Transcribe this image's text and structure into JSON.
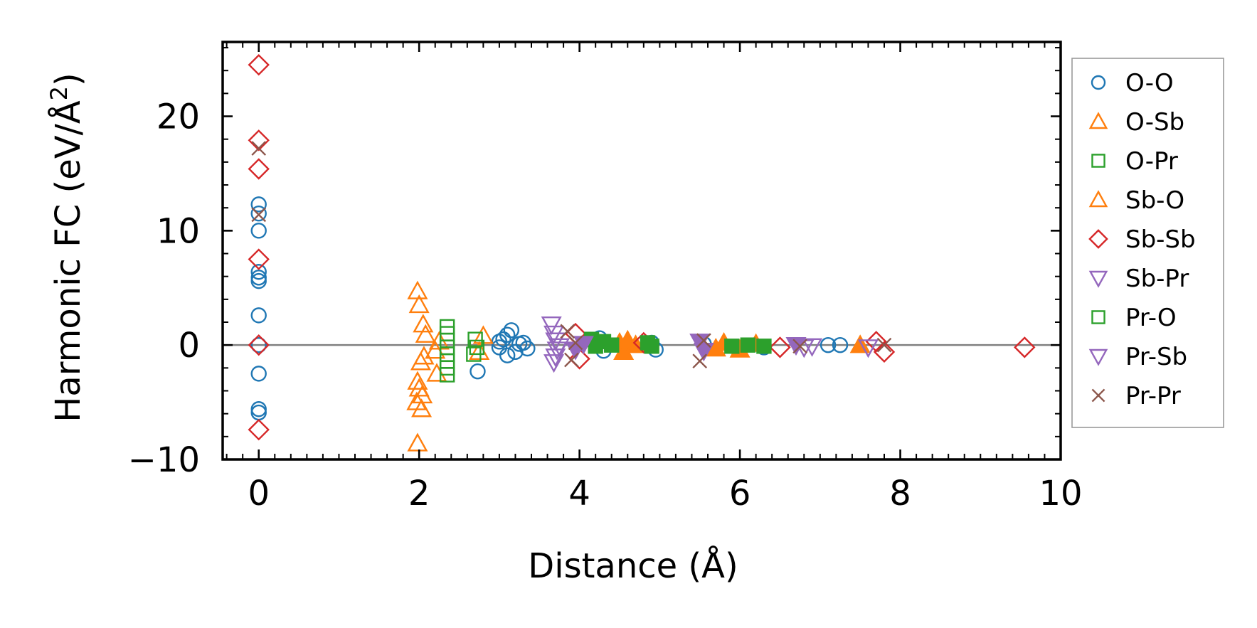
{
  "chart_data": {
    "type": "scatter",
    "xlabel": "Distance (Å)",
    "ylabel_main": "Harmonic FC (eV/Å",
    "ylabel_sup": "2",
    "ylabel_close": ")",
    "xlim": [
      -0.45,
      10
    ],
    "ylim": [
      -10,
      26.5
    ],
    "xticks": [
      0,
      2,
      4,
      6,
      8,
      10
    ],
    "xtick_labels": [
      "0",
      "2",
      "4",
      "6",
      "8",
      "10"
    ],
    "yticks": [
      -10,
      0,
      10,
      20
    ],
    "ytick_labels": [
      "−10",
      "0",
      "10",
      "20"
    ],
    "zero_line": 0,
    "legend_position": "outside-right",
    "series": [
      {
        "name": "O-O",
        "marker": "circle",
        "color": "#1f77b4",
        "fill": false,
        "points": [
          [
            0,
            12.3
          ],
          [
            0,
            11.5
          ],
          [
            0,
            10
          ],
          [
            0,
            6.4
          ],
          [
            0,
            5.9
          ],
          [
            0,
            5.6
          ],
          [
            0,
            2.6
          ],
          [
            0,
            0
          ],
          [
            0,
            -2.5
          ],
          [
            0,
            -5.6
          ],
          [
            0,
            -5.9
          ],
          [
            2.73,
            -2.3
          ],
          [
            3.0,
            -0.2
          ],
          [
            3.05,
            0.5
          ],
          [
            3.1,
            0.9
          ],
          [
            3.15,
            1.3
          ],
          [
            3.2,
            -0.6
          ],
          [
            3.1,
            -0.9
          ],
          [
            3.25,
            0.1
          ],
          [
            3.3,
            0.2
          ],
          [
            3.35,
            -0.3
          ],
          [
            3.0,
            0.3
          ],
          [
            4.25,
            0.6
          ],
          [
            4.3,
            -0.5
          ],
          [
            4.9,
            0.2
          ],
          [
            4.95,
            -0.4
          ],
          [
            5.55,
            0.1
          ],
          [
            6.3,
            -0.2
          ],
          [
            7.1,
            0
          ],
          [
            7.25,
            0
          ]
        ]
      },
      {
        "name": "O-Sb",
        "marker": "triangle-up",
        "color": "#ff7f0e",
        "fill": false,
        "points": [
          [
            1.98,
            4.7
          ],
          [
            2.0,
            3.5
          ],
          [
            2.05,
            1.8
          ],
          [
            2.08,
            0.9
          ],
          [
            2.02,
            -1.5
          ],
          [
            2.06,
            -1.0
          ],
          [
            1.98,
            -3.2
          ],
          [
            2.0,
            -3.8
          ],
          [
            2.04,
            -4.4
          ],
          [
            1.97,
            -5.0
          ],
          [
            2.03,
            -5.6
          ],
          [
            1.98,
            -8.6
          ],
          [
            2.2,
            -0.5
          ],
          [
            2.25,
            0.3
          ],
          [
            2.22,
            -2.5
          ],
          [
            2.75,
            -0.6
          ],
          [
            2.8,
            0.8
          ]
        ]
      },
      {
        "name": "O-Pr",
        "marker": "square",
        "color": "#2ca02c",
        "fill": false,
        "points": [
          [
            2.35,
            1.6
          ],
          [
            2.35,
            1.0
          ],
          [
            2.35,
            0.4
          ],
          [
            2.35,
            -0.2
          ],
          [
            2.35,
            -0.8
          ],
          [
            2.35,
            -1.4
          ],
          [
            2.35,
            -2.0
          ],
          [
            2.35,
            -2.6
          ],
          [
            2.7,
            0.5
          ],
          [
            2.72,
            -0.2
          ],
          [
            2.68,
            -0.8
          ]
        ]
      },
      {
        "name": "Sb-O",
        "marker": "triangle-up",
        "color": "#ff7f0e",
        "fill": true,
        "points": [
          [
            4.5,
            0.2
          ],
          [
            4.55,
            -0.6
          ],
          [
            4.6,
            0.4
          ],
          [
            4.7,
            0
          ],
          [
            5.7,
            -0.3
          ],
          [
            5.8,
            0.2
          ],
          [
            6.0,
            -0.4
          ],
          [
            6.2,
            0.1
          ],
          [
            7.5,
            0
          ]
        ]
      },
      {
        "name": "Sb-Sb",
        "marker": "diamond",
        "color": "#d62728",
        "fill": false,
        "points": [
          [
            0,
            24.5
          ],
          [
            0,
            17.9
          ],
          [
            0,
            15.4
          ],
          [
            0,
            7.5
          ],
          [
            0,
            0
          ],
          [
            0,
            -7.4
          ],
          [
            3.95,
            1.0
          ],
          [
            4.0,
            -1.2
          ],
          [
            4.8,
            0.2
          ],
          [
            6.5,
            -0.2
          ],
          [
            7.7,
            0.3
          ],
          [
            7.8,
            -0.6
          ],
          [
            9.55,
            -0.2
          ]
        ]
      },
      {
        "name": "Sb-Pr",
        "marker": "triangle-down",
        "color": "#9467bd",
        "fill": false,
        "points": [
          [
            3.65,
            1.8
          ],
          [
            3.68,
            1.0
          ],
          [
            3.7,
            0.4
          ],
          [
            3.72,
            -0.4
          ],
          [
            3.7,
            -1.0
          ],
          [
            3.68,
            -1.5
          ],
          [
            3.75,
            -0.1
          ],
          [
            6.8,
            -0.2
          ],
          [
            6.9,
            -0.1
          ],
          [
            7.6,
            -0.2
          ]
        ]
      },
      {
        "name": "Pr-O",
        "marker": "square",
        "color": "#2ca02c",
        "fill": true,
        "points": [
          [
            4.15,
            0.5
          ],
          [
            4.2,
            -0.1
          ],
          [
            4.3,
            0.3
          ],
          [
            4.4,
            0
          ],
          [
            4.85,
            0.2
          ],
          [
            4.9,
            -0.1
          ],
          [
            5.9,
            -0.1
          ],
          [
            6.1,
            0
          ],
          [
            6.3,
            -0.1
          ]
        ]
      },
      {
        "name": "Pr-Sb",
        "marker": "triangle-down",
        "color": "#9467bd",
        "fill": true,
        "points": [
          [
            3.95,
            -0.4
          ],
          [
            4.05,
            0.1
          ],
          [
            5.5,
            0.3
          ],
          [
            5.55,
            -0.5
          ],
          [
            6.7,
            0
          ]
        ]
      },
      {
        "name": "Pr-Pr",
        "marker": "x",
        "color": "#8c564b",
        "fill": false,
        "points": [
          [
            0,
            17.2
          ],
          [
            0,
            11.4
          ],
          [
            3.85,
            1.2
          ],
          [
            3.9,
            -1.3
          ],
          [
            3.95,
            0.2
          ],
          [
            5.5,
            -1.4
          ],
          [
            5.55,
            0.4
          ],
          [
            6.75,
            -0.1
          ],
          [
            7.8,
            0
          ]
        ]
      }
    ]
  }
}
